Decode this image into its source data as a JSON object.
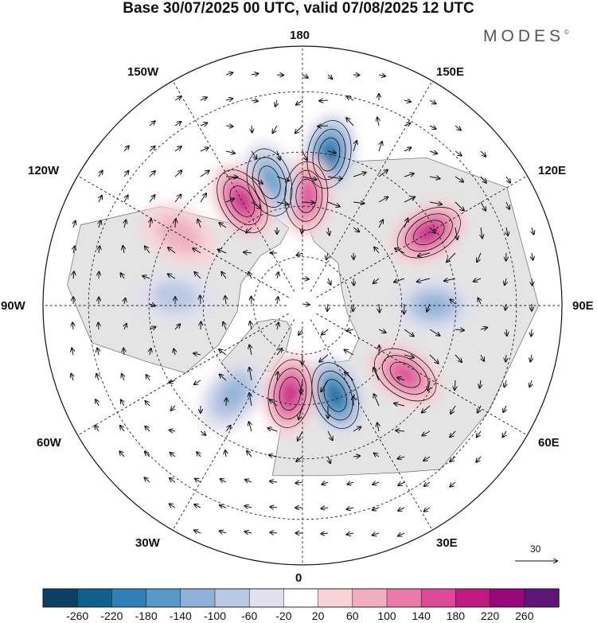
{
  "header": {
    "title": "Base 30/07/2025 00 UTC, valid 07/08/2025 12 UTC",
    "brand": "MODES",
    "brand_mark": "©"
  },
  "map": {
    "projection": "polar stereographic, north pole",
    "longitude_labels": [
      "180",
      "150E",
      "120E",
      "90E",
      "60E",
      "30E",
      "0",
      "30W",
      "60W",
      "90W",
      "120W",
      "150W"
    ],
    "anomaly_centers": [
      {
        "sign": "negative",
        "lon": 170,
        "lat": 45,
        "magnitude": -240
      },
      {
        "sign": "positive",
        "lon": 178,
        "lat": 57,
        "magnitude": 150
      },
      {
        "sign": "negative",
        "lon": -165,
        "lat": 52,
        "magnitude": -170
      },
      {
        "sign": "positive",
        "lon": -150,
        "lat": 54,
        "magnitude": 200
      },
      {
        "sign": "positive",
        "lon": 120,
        "lat": 47,
        "magnitude": 200
      },
      {
        "sign": "negative",
        "lon": 90,
        "lat": 51,
        "magnitude": -120
      },
      {
        "sign": "positive",
        "lon": 56,
        "lat": 53,
        "magnitude": 150
      },
      {
        "sign": "negative",
        "lon": 20,
        "lat": 61,
        "magnitude": -230
      },
      {
        "sign": "positive",
        "lon": -8,
        "lat": 63,
        "magnitude": 200
      },
      {
        "sign": "negative",
        "lon": -38,
        "lat": 56,
        "magnitude": -110
      },
      {
        "sign": "positive",
        "lon": -120,
        "lat": 48,
        "magnitude": 60
      },
      {
        "sign": "negative",
        "lon": -94,
        "lat": 52,
        "magnitude": -60
      }
    ]
  },
  "wind_scale": {
    "label": "30"
  },
  "colorbar": {
    "labels": [
      "-260",
      "-220",
      "-180",
      "-140",
      "-100",
      "-60",
      "-20",
      "20",
      "60",
      "100",
      "140",
      "180",
      "220",
      "260"
    ],
    "colors": [
      "#0d3f63",
      "#115f8c",
      "#2f80b6",
      "#5699c9",
      "#8eb1d7",
      "#b9c8e3",
      "#e0e0ef",
      "#ffffff",
      "#f8d3d6",
      "#f0aec0",
      "#e97aa9",
      "#dc4a97",
      "#be1a80",
      "#960877",
      "#5f1477"
    ]
  }
}
